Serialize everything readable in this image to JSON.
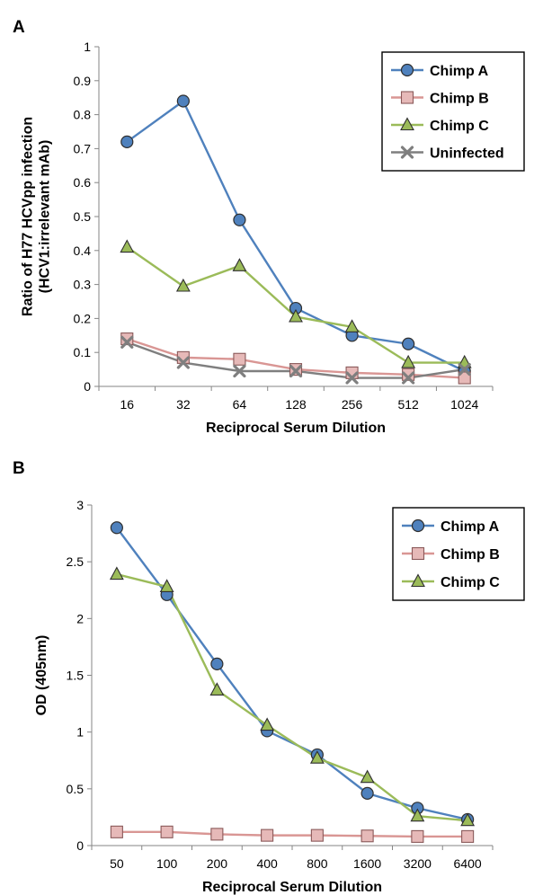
{
  "chart_data": [
    {
      "type": "line",
      "panel_label": "A",
      "categories": [
        "16",
        "32",
        "64",
        "128",
        "256",
        "512",
        "1024"
      ],
      "xlabel": "Reciprocal Serum Dilution",
      "ylabel_lines": [
        "Ratio of H77 HCVpp infection",
        "(HCV1:irrelevant mAb)"
      ],
      "ylim": [
        0,
        1
      ],
      "yticks": [
        "0",
        "0.1",
        "0.2",
        "0.3",
        "0.4",
        "0.5",
        "0.6",
        "0.7",
        "0.8",
        "0.9",
        "1"
      ],
      "grid": false,
      "legend_position": "top-right",
      "series": [
        {
          "name": "Chimp A",
          "color": "#4f81bd",
          "fill": "#4f81bd",
          "marker": "circle",
          "values": [
            0.72,
            0.84,
            0.49,
            0.23,
            0.15,
            0.125,
            0.045
          ]
        },
        {
          "name": "Chimp B",
          "color": "#d99694",
          "fill": "#e6b9b8",
          "marker": "square",
          "values": [
            0.14,
            0.085,
            0.08,
            0.05,
            0.04,
            0.035,
            0.025
          ]
        },
        {
          "name": "Chimp C",
          "color": "#9bbb59",
          "fill": "#9bbb59",
          "marker": "triangle",
          "values": [
            0.41,
            0.295,
            0.355,
            0.205,
            0.175,
            0.07,
            0.07
          ]
        },
        {
          "name": "Uninfected",
          "color": "#7f7f7f",
          "fill": "#7f7f7f",
          "marker": "x",
          "values": [
            0.13,
            0.07,
            0.045,
            0.045,
            0.025,
            0.025,
            0.05
          ]
        }
      ]
    },
    {
      "type": "line",
      "panel_label": "B",
      "categories": [
        "50",
        "100",
        "200",
        "400",
        "800",
        "1600",
        "3200",
        "6400"
      ],
      "xlabel": "Reciprocal Serum Dilution",
      "ylabel_lines": [
        "OD (405nm)"
      ],
      "ylim": [
        0,
        3
      ],
      "yticks": [
        "0",
        "0.5",
        "1",
        "1.5",
        "2",
        "2.5",
        "3"
      ],
      "grid": false,
      "legend_position": "top-right",
      "series": [
        {
          "name": "Chimp A",
          "color": "#4f81bd",
          "fill": "#4f81bd",
          "marker": "circle",
          "values": [
            2.8,
            2.21,
            1.6,
            1.01,
            0.8,
            0.46,
            0.33,
            0.23
          ]
        },
        {
          "name": "Chimp B",
          "color": "#d99694",
          "fill": "#e6b9b8",
          "marker": "square",
          "values": [
            0.12,
            0.12,
            0.1,
            0.09,
            0.09,
            0.085,
            0.08,
            0.08
          ]
        },
        {
          "name": "Chimp C",
          "color": "#9bbb59",
          "fill": "#9bbb59",
          "marker": "triangle",
          "values": [
            2.39,
            2.28,
            1.37,
            1.06,
            0.77,
            0.6,
            0.26,
            0.22
          ]
        }
      ]
    }
  ]
}
